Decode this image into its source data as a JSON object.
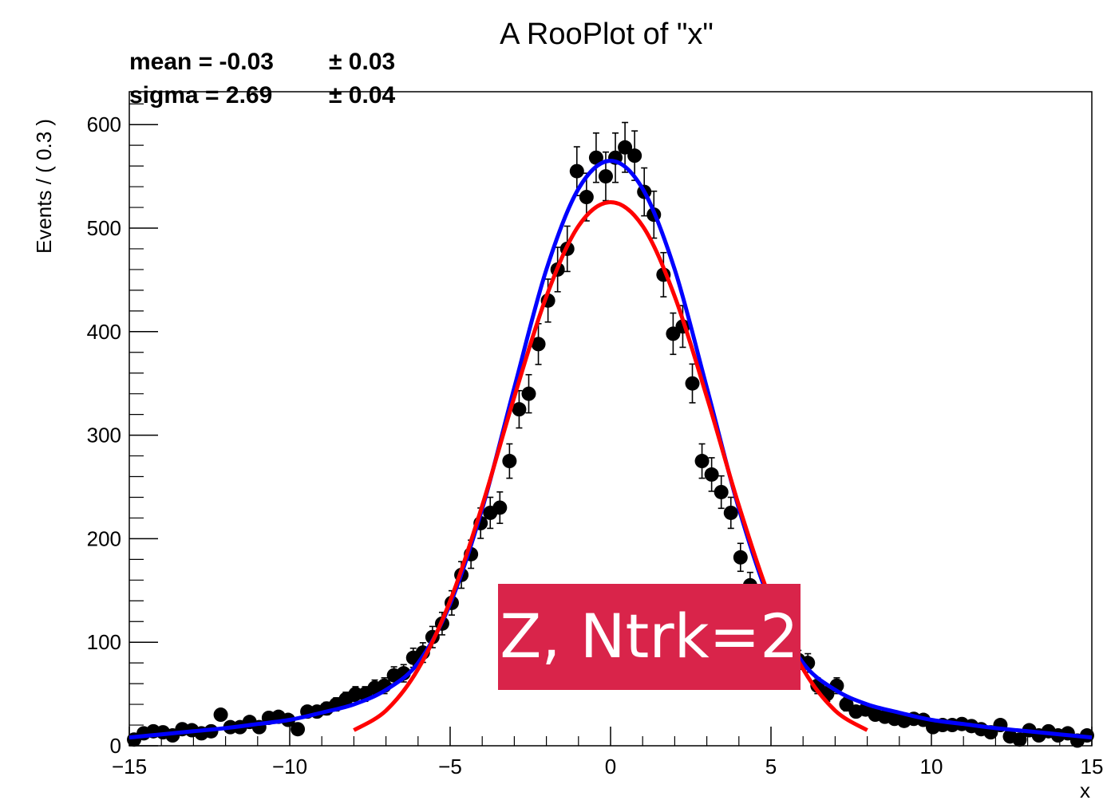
{
  "chart_data": {
    "type": "scatter",
    "title": "A RooPlot of \"x\"",
    "xlabel": "x",
    "ylabel": "Events / ( 0.3 )",
    "xlim": [
      -15,
      15
    ],
    "ylim": [
      0,
      600
    ],
    "x_ticks": [
      -15,
      -10,
      -5,
      0,
      5,
      10,
      15
    ],
    "x_tick_labels": [
      "−15",
      "−10",
      "−5",
      "0",
      "5",
      "10",
      "15"
    ],
    "y_ticks": [
      0,
      100,
      200,
      300,
      400,
      500,
      600
    ],
    "y_tick_labels": [
      "0",
      "100",
      "200",
      "300",
      "400",
      "500",
      "600"
    ],
    "fit_stats": [
      {
        "label": "mean = -0.03",
        "error": "± 0.03"
      },
      {
        "label": "sigma = 2.69",
        "error": "± 0.04"
      }
    ],
    "series": [
      {
        "kind": "data_points",
        "color": "#000000",
        "points": [
          [
            -14.85,
            6
          ],
          [
            -14.55,
            12
          ],
          [
            -14.25,
            14
          ],
          [
            -13.95,
            13
          ],
          [
            -13.65,
            10
          ],
          [
            -13.35,
            16
          ],
          [
            -13.05,
            15
          ],
          [
            -12.75,
            12
          ],
          [
            -12.45,
            14
          ],
          [
            -12.15,
            30
          ],
          [
            -11.85,
            18
          ],
          [
            -11.55,
            18
          ],
          [
            -11.25,
            23
          ],
          [
            -10.95,
            18
          ],
          [
            -10.65,
            27
          ],
          [
            -10.35,
            28
          ],
          [
            -10.05,
            25
          ],
          [
            -9.75,
            16
          ],
          [
            -9.45,
            33
          ],
          [
            -9.15,
            33
          ],
          [
            -8.85,
            36
          ],
          [
            -8.55,
            40
          ],
          [
            -8.25,
            45
          ],
          [
            -7.95,
            50
          ],
          [
            -7.65,
            50
          ],
          [
            -7.35,
            56
          ],
          [
            -7.05,
            58
          ],
          [
            -6.75,
            68
          ],
          [
            -6.45,
            70
          ],
          [
            -6.15,
            85
          ],
          [
            -5.85,
            90
          ],
          [
            -5.55,
            105
          ],
          [
            -5.25,
            118
          ],
          [
            -4.95,
            138
          ],
          [
            -4.65,
            165
          ],
          [
            -4.35,
            185
          ],
          [
            -4.05,
            215
          ],
          [
            -3.75,
            225
          ],
          [
            -3.45,
            230
          ],
          [
            -3.15,
            275
          ],
          [
            -2.85,
            325
          ],
          [
            -2.55,
            340
          ],
          [
            -2.25,
            388
          ],
          [
            -1.95,
            430
          ],
          [
            -1.65,
            460
          ],
          [
            -1.35,
            480
          ],
          [
            -1.05,
            555
          ],
          [
            -0.75,
            530
          ],
          [
            -0.45,
            568
          ],
          [
            -0.15,
            550
          ],
          [
            0.15,
            568
          ],
          [
            0.45,
            578
          ],
          [
            0.75,
            570
          ],
          [
            1.05,
            535
          ],
          [
            1.35,
            513
          ],
          [
            1.65,
            455
          ],
          [
            1.95,
            398
          ],
          [
            2.25,
            405
          ],
          [
            2.55,
            350
          ],
          [
            2.85,
            275
          ],
          [
            3.15,
            262
          ],
          [
            3.45,
            245
          ],
          [
            3.75,
            225
          ],
          [
            4.05,
            182
          ],
          [
            4.35,
            155
          ],
          [
            4.65,
            140
          ],
          [
            4.95,
            128
          ],
          [
            5.25,
            95
          ],
          [
            5.55,
            78
          ],
          [
            5.85,
            83
          ],
          [
            6.15,
            80
          ],
          [
            6.45,
            58
          ],
          [
            6.75,
            50
          ],
          [
            7.05,
            58
          ],
          [
            7.35,
            40
          ],
          [
            7.65,
            33
          ],
          [
            7.95,
            35
          ],
          [
            8.25,
            30
          ],
          [
            8.55,
            28
          ],
          [
            8.85,
            26
          ],
          [
            9.15,
            24
          ],
          [
            9.45,
            26
          ],
          [
            9.75,
            25
          ],
          [
            10.05,
            18
          ],
          [
            10.35,
            20
          ],
          [
            10.65,
            20
          ],
          [
            10.95,
            21
          ],
          [
            11.25,
            19
          ],
          [
            11.55,
            16
          ],
          [
            11.85,
            13
          ],
          [
            12.15,
            20
          ],
          [
            12.45,
            9
          ],
          [
            12.75,
            6
          ],
          [
            13.05,
            15
          ],
          [
            13.35,
            10
          ],
          [
            13.65,
            14
          ],
          [
            13.95,
            10
          ],
          [
            14.25,
            12
          ],
          [
            14.55,
            5
          ],
          [
            14.85,
            10
          ]
        ]
      },
      {
        "kind": "fit_curve",
        "color": "#0000ff",
        "model": "core gaussian plus wide gaussian tails",
        "x_range": [
          -15,
          15
        ],
        "samples": [
          [
            -15,
            8
          ],
          [
            -14,
            11
          ],
          [
            -13,
            14
          ],
          [
            -12,
            17
          ],
          [
            -11,
            21
          ],
          [
            -10,
            25
          ],
          [
            -9,
            32
          ],
          [
            -8,
            40
          ],
          [
            -7,
            54
          ],
          [
            -6,
            80
          ],
          [
            -5,
            137
          ],
          [
            -4,
            229
          ],
          [
            -3,
            346
          ],
          [
            -2,
            460
          ],
          [
            -1,
            538
          ],
          [
            0,
            565
          ],
          [
            1,
            538
          ],
          [
            2,
            460
          ],
          [
            3,
            346
          ],
          [
            4,
            229
          ],
          [
            5,
            137
          ],
          [
            6,
            80
          ],
          [
            7,
            54
          ],
          [
            8,
            40
          ],
          [
            9,
            32
          ],
          [
            10,
            25
          ],
          [
            11,
            21
          ],
          [
            12,
            17
          ],
          [
            13,
            14
          ],
          [
            14,
            11
          ],
          [
            15,
            8
          ]
        ]
      },
      {
        "kind": "fit_curve",
        "color": "#ff0000",
        "model": "gaussian",
        "x_range": [
          -8,
          8
        ],
        "samples": [
          [
            -8,
            15
          ],
          [
            -7,
            34
          ],
          [
            -6,
            74
          ],
          [
            -5,
            140
          ],
          [
            -4,
            232
          ],
          [
            -3,
            337
          ],
          [
            -2,
            434
          ],
          [
            -1,
            502
          ],
          [
            0,
            525
          ],
          [
            1,
            502
          ],
          [
            2,
            434
          ],
          [
            3,
            337
          ],
          [
            4,
            232
          ],
          [
            5,
            140
          ],
          [
            6,
            74
          ],
          [
            7,
            34
          ],
          [
            8,
            15
          ]
        ]
      }
    ],
    "annotation": {
      "text": "Z, Ntrk=2",
      "color": "#d9244a"
    }
  }
}
